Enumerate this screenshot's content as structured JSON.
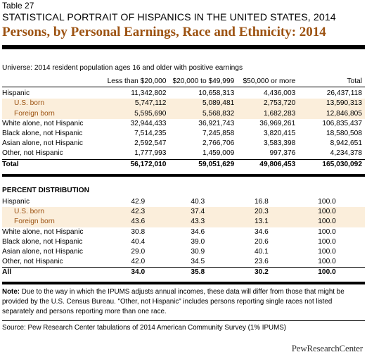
{
  "table_number": "Table 27",
  "title": "STATISTICAL PORTRAIT OF HISPANICS IN THE UNITED STATES, 2014",
  "subtitle": "Persons, by Personal Earnings, Race and Ethnicity: 2014",
  "universe": "Universe: 2014 resident population ages 16 and older with positive earnings",
  "columns": [
    "Less than $20,000",
    "$20,000 to $49,999",
    "$50,000 or more",
    "Total"
  ],
  "counts": {
    "rows": [
      {
        "label": "Hispanic",
        "values": [
          "11,342,802",
          "10,658,313",
          "4,436,003",
          "26,437,118"
        ]
      },
      {
        "label": "U.S. born",
        "values": [
          "5,747,112",
          "5,089,481",
          "2,753,720",
          "13,590,313"
        ]
      },
      {
        "label": "Foreign born",
        "values": [
          "5,595,690",
          "5,568,832",
          "1,682,283",
          "12,846,805"
        ]
      },
      {
        "label": "White alone, not Hispanic",
        "values": [
          "32,944,433",
          "36,921,743",
          "36,969,261",
          "106,835,437"
        ]
      },
      {
        "label": "Black alone, not Hispanic",
        "values": [
          "7,514,235",
          "7,245,858",
          "3,820,415",
          "18,580,508"
        ]
      },
      {
        "label": "Asian alone, not Hispanic",
        "values": [
          "2,592,547",
          "2,766,706",
          "3,583,398",
          "8,942,651"
        ]
      },
      {
        "label": "Other, not Hispanic",
        "values": [
          "1,777,993",
          "1,459,009",
          "997,376",
          "4,234,378"
        ]
      }
    ],
    "total": {
      "label": "Total",
      "values": [
        "56,172,010",
        "59,051,629",
        "49,806,453",
        "165,030,092"
      ]
    }
  },
  "percent_header": "PERCENT DISTRIBUTION",
  "percent": {
    "rows": [
      {
        "label": "Hispanic",
        "values": [
          "42.9",
          "40.3",
          "16.8",
          "100.0"
        ]
      },
      {
        "label": "U.S. born",
        "values": [
          "42.3",
          "37.4",
          "20.3",
          "100.0"
        ]
      },
      {
        "label": "Foreign born",
        "values": [
          "43.6",
          "43.3",
          "13.1",
          "100.0"
        ]
      },
      {
        "label": "White alone, not Hispanic",
        "values": [
          "30.8",
          "34.6",
          "34.6",
          "100.0"
        ]
      },
      {
        "label": "Black alone, not Hispanic",
        "values": [
          "40.4",
          "39.0",
          "20.6",
          "100.0"
        ]
      },
      {
        "label": "Asian alone, not Hispanic",
        "values": [
          "29.0",
          "30.9",
          "40.1",
          "100.0"
        ]
      },
      {
        "label": "Other, not Hispanic",
        "values": [
          "42.0",
          "34.5",
          "23.6",
          "100.0"
        ]
      }
    ],
    "total": {
      "label": "All",
      "values": [
        "34.0",
        "35.8",
        "30.2",
        "100.0"
      ]
    }
  },
  "note_label": "Note:",
  "note_text": " Due to the way in which the IPUMS adjusts annual incomes, these data will differ from those that might be provided by the U.S. Census Bureau. \"Other, not Hispanic\" includes persons reporting single races not listed separately and persons reporting more than one race.",
  "source": "Source: Pew Research Center tabulations of 2014 American Community Survey (1% IPUMS)",
  "logo_text": "PewResearchCenter",
  "colors": {
    "accent": "#9c5211",
    "shade": "#fbeedb"
  }
}
